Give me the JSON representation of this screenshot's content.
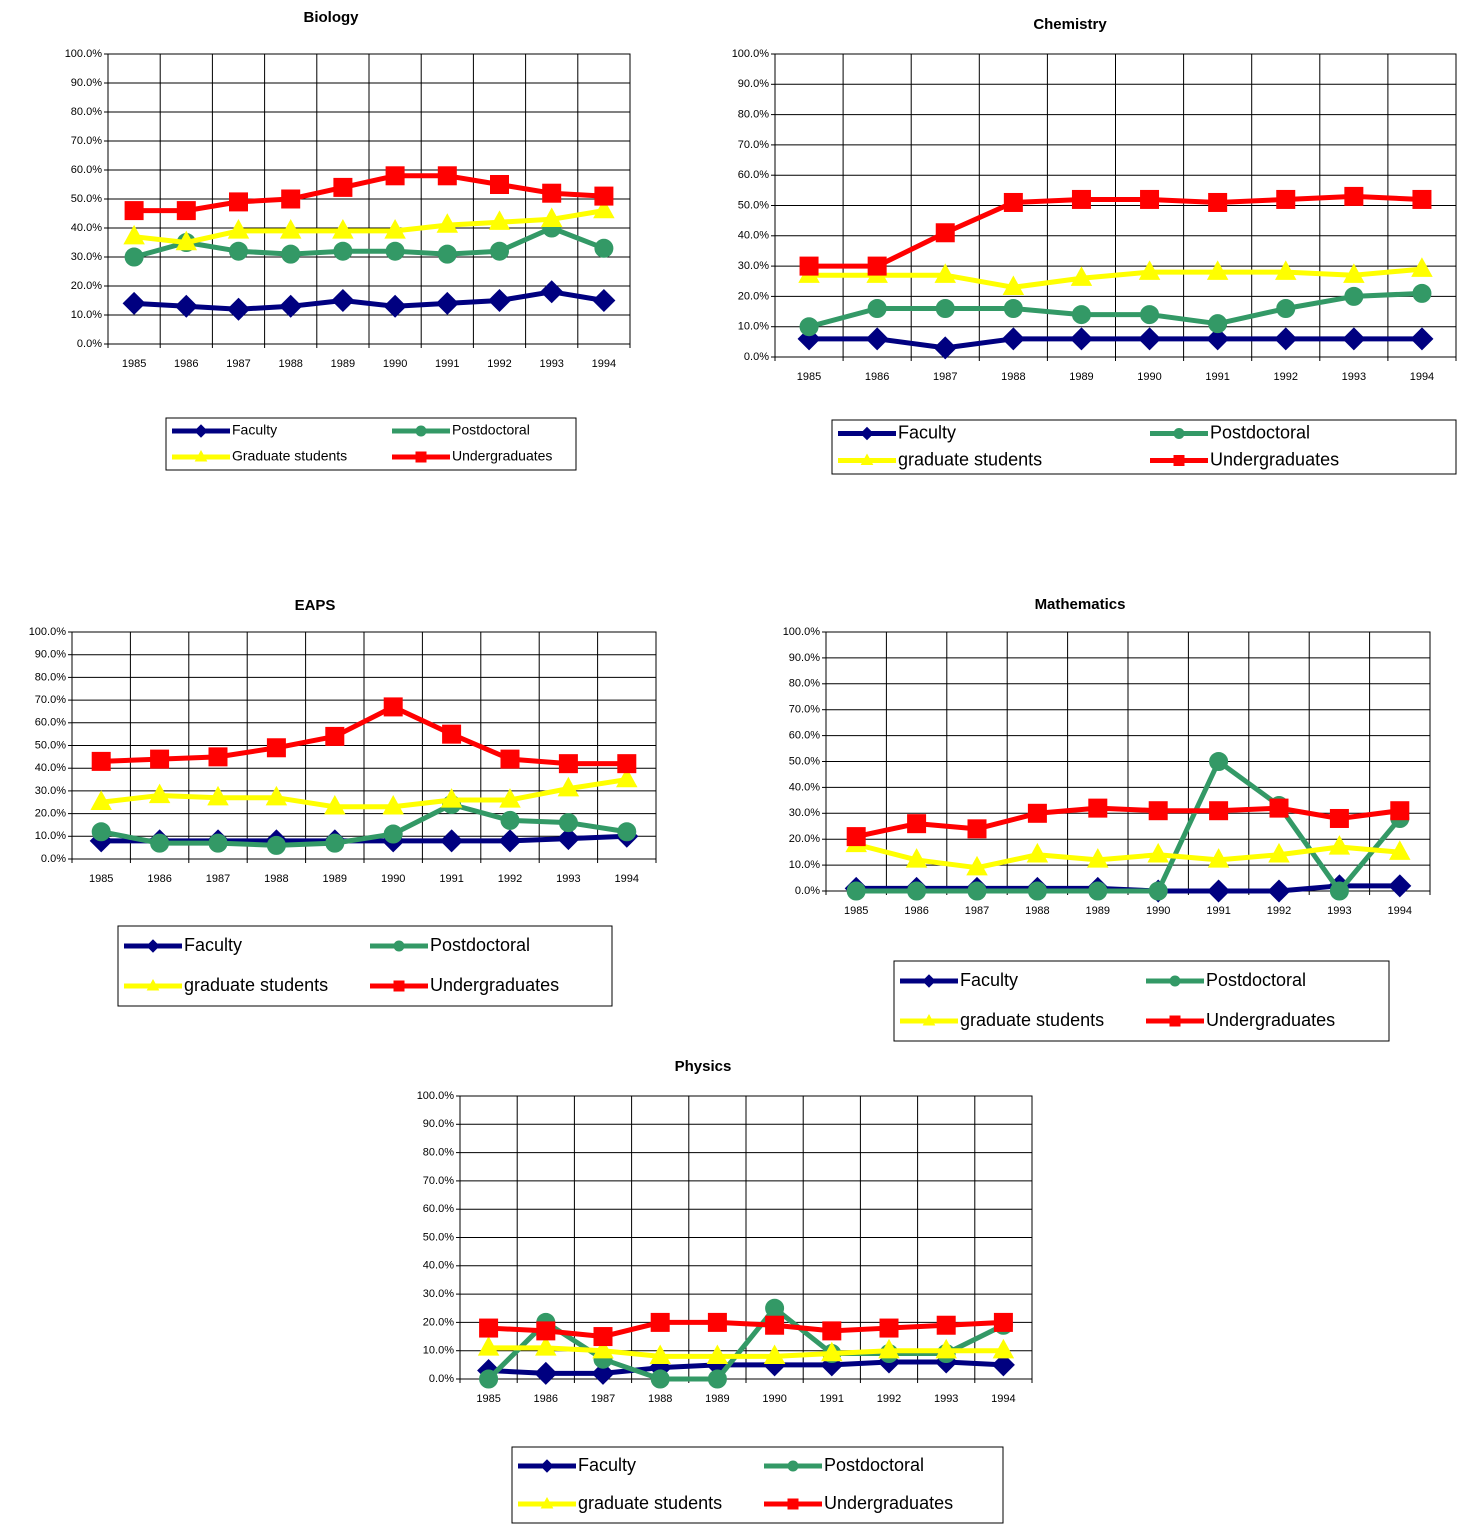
{
  "chart_data": [
    {
      "type": "line",
      "title": "Biology",
      "categories": [
        "1985",
        "1986",
        "1987",
        "1988",
        "1989",
        "1990",
        "1991",
        "1992",
        "1993",
        "1994"
      ],
      "series": [
        {
          "name": "Faculty",
          "color": "#000080",
          "values": [
            14,
            13,
            12,
            13,
            15,
            13,
            14,
            15,
            18,
            15
          ]
        },
        {
          "name": "Postdoctoral",
          "color": "#339966",
          "values": [
            30,
            35,
            32,
            31,
            32,
            32,
            31,
            32,
            40,
            33
          ]
        },
        {
          "name": "Graduate students",
          "color": "#FFFF00",
          "values": [
            37,
            35,
            39,
            39,
            39,
            39,
            41,
            42,
            43,
            46
          ]
        },
        {
          "name": "Undergraduates",
          "color": "#FF0000",
          "values": [
            46,
            46,
            49,
            50,
            54,
            58,
            58,
            55,
            52,
            51
          ]
        }
      ],
      "ylim": [
        0,
        100
      ],
      "yticks": [
        {
          "value": 0,
          "label": "0.0%"
        },
        {
          "value": 10,
          "label": "10.0%"
        },
        {
          "value": 20,
          "label": "20.0%"
        },
        {
          "value": 30,
          "label": "30.0%"
        },
        {
          "value": 40,
          "label": "40.0%"
        },
        {
          "value": 50,
          "label": "50.0%"
        },
        {
          "value": 60,
          "label": "60.0%"
        },
        {
          "value": 70,
          "label": "70.0%"
        },
        {
          "value": 80,
          "label": "80.0%"
        },
        {
          "value": 90,
          "label": "90.0%"
        },
        {
          "value": 100,
          "label": "100.0%"
        }
      ],
      "grid": true,
      "legend": "bottom"
    },
    {
      "type": "line",
      "title": "Chemistry",
      "categories": [
        "1985",
        "1986",
        "1987",
        "1988",
        "1989",
        "1990",
        "1991",
        "1992",
        "1993",
        "1994"
      ],
      "series": [
        {
          "name": "Faculty",
          "color": "#000080",
          "values": [
            6,
            6,
            3,
            6,
            6,
            6,
            6,
            6,
            6,
            6
          ]
        },
        {
          "name": "Postdoctoral",
          "color": "#339966",
          "values": [
            10,
            16,
            16,
            16,
            14,
            14,
            11,
            16,
            20,
            21
          ]
        },
        {
          "name": "graduate students",
          "color": "#FFFF00",
          "values": [
            27,
            27,
            27,
            23,
            26,
            28,
            28,
            28,
            27,
            29
          ]
        },
        {
          "name": "Undergraduates",
          "color": "#FF0000",
          "values": [
            30,
            30,
            41,
            51,
            52,
            52,
            51,
            52,
            53,
            52
          ]
        }
      ],
      "ylim": [
        0,
        100
      ],
      "yticks": [
        {
          "value": 0,
          "label": "0.0%"
        },
        {
          "value": 10,
          "label": "10.0%"
        },
        {
          "value": 20,
          "label": "20.0%"
        },
        {
          "value": 30,
          "label": "30.0%"
        },
        {
          "value": 40,
          "label": "40.0%"
        },
        {
          "value": 50,
          "label": "50.0%"
        },
        {
          "value": 60,
          "label": "60.0%"
        },
        {
          "value": 70,
          "label": "70.0%"
        },
        {
          "value": 80,
          "label": "80.0%"
        },
        {
          "value": 90,
          "label": "90.0%"
        },
        {
          "value": 100,
          "label": "100.0%"
        }
      ],
      "grid": true,
      "legend": "bottom"
    },
    {
      "type": "line",
      "title": "EAPS",
      "categories": [
        "1985",
        "1986",
        "1987",
        "1988",
        "1989",
        "1990",
        "1991",
        "1992",
        "1993",
        "1994"
      ],
      "series": [
        {
          "name": "Faculty",
          "color": "#000080",
          "values": [
            8,
            8,
            8,
            8,
            8,
            8,
            8,
            8,
            9,
            10
          ]
        },
        {
          "name": "Postdoctoral",
          "color": "#339966",
          "values": [
            12,
            7,
            7,
            6,
            7,
            11,
            24,
            17,
            16,
            12
          ]
        },
        {
          "name": "graduate students",
          "color": "#FFFF00",
          "values": [
            25,
            28,
            27,
            27,
            23,
            23,
            26,
            26,
            31,
            35
          ]
        },
        {
          "name": "Undergraduates",
          "color": "#FF0000",
          "values": [
            43,
            44,
            45,
            49,
            54,
            67,
            55,
            44,
            42,
            42
          ]
        }
      ],
      "ylim": [
        0,
        100
      ],
      "yticks": [
        {
          "value": 0,
          "label": "0.0%"
        },
        {
          "value": 10,
          "label": "10.0%"
        },
        {
          "value": 20,
          "label": "20.0%"
        },
        {
          "value": 30,
          "label": "30.0%"
        },
        {
          "value": 40,
          "label": "40.0%"
        },
        {
          "value": 50,
          "label": "50.0%"
        },
        {
          "value": 60,
          "label": "60.0%"
        },
        {
          "value": 70,
          "label": "70.0%"
        },
        {
          "value": 80,
          "label": "80.0%"
        },
        {
          "value": 90,
          "label": "90.0%"
        },
        {
          "value": 100,
          "label": "100.0%"
        }
      ],
      "grid": true,
      "legend": "bottom"
    },
    {
      "type": "line",
      "title": "Mathematics",
      "categories": [
        "1985",
        "1986",
        "1987",
        "1988",
        "1989",
        "1990",
        "1991",
        "1992",
        "1993",
        "1994"
      ],
      "series": [
        {
          "name": "Faculty",
          "color": "#000080",
          "values": [
            1,
            1,
            1,
            1,
            1,
            0,
            0,
            0,
            2,
            2
          ]
        },
        {
          "name": "Postdoctoral",
          "color": "#339966",
          "values": [
            0,
            0,
            0,
            0,
            0,
            0,
            50,
            33,
            0,
            28
          ]
        },
        {
          "name": "graduate students",
          "color": "#FFFF00",
          "values": [
            18,
            12,
            9,
            14,
            12,
            14,
            12,
            14,
            17,
            15
          ]
        },
        {
          "name": "Undergraduates",
          "color": "#FF0000",
          "values": [
            21,
            26,
            24,
            30,
            32,
            31,
            31,
            32,
            28,
            31
          ]
        }
      ],
      "ylim": [
        0,
        100
      ],
      "yticks": [
        {
          "value": 0,
          "label": "0.0%"
        },
        {
          "value": 10,
          "label": "10.0%"
        },
        {
          "value": 20,
          "label": "20.0%"
        },
        {
          "value": 30,
          "label": "30.0%"
        },
        {
          "value": 40,
          "label": "40.0%"
        },
        {
          "value": 50,
          "label": "50.0%"
        },
        {
          "value": 60,
          "label": "60.0%"
        },
        {
          "value": 70,
          "label": "70.0%"
        },
        {
          "value": 80,
          "label": "80.0%"
        },
        {
          "value": 90,
          "label": "90.0%"
        },
        {
          "value": 100,
          "label": "100.0%"
        }
      ],
      "grid": true,
      "legend": "bottom"
    },
    {
      "type": "line",
      "title": "Physics",
      "categories": [
        "1985",
        "1986",
        "1987",
        "1988",
        "1989",
        "1990",
        "1991",
        "1992",
        "1993",
        "1994"
      ],
      "series": [
        {
          "name": "Faculty",
          "color": "#000080",
          "values": [
            3,
            2,
            2,
            4,
            5,
            5,
            5,
            6,
            6,
            5
          ]
        },
        {
          "name": "Postdoctoral",
          "color": "#339966",
          "values": [
            0,
            20,
            7,
            0,
            0,
            25,
            9,
            9,
            9,
            19
          ]
        },
        {
          "name": "graduate students",
          "color": "#FFFF00",
          "values": [
            11,
            11,
            10,
            8,
            8,
            8,
            9,
            10,
            10,
            10
          ]
        },
        {
          "name": "Undergraduates",
          "color": "#FF0000",
          "values": [
            18,
            17,
            15,
            20,
            20,
            19,
            17,
            18,
            19,
            20
          ]
        }
      ],
      "ylim": [
        0,
        100
      ],
      "yticks": [
        {
          "value": 0,
          "label": "0.0%"
        },
        {
          "value": 10,
          "label": "10.0%"
        },
        {
          "value": 20,
          "label": "20.0%"
        },
        {
          "value": 30,
          "label": "30.0%"
        },
        {
          "value": 40,
          "label": "40.0%"
        },
        {
          "value": 50,
          "label": "50.0%"
        },
        {
          "value": 60,
          "label": "60.0%"
        },
        {
          "value": 70,
          "label": "70.0%"
        },
        {
          "value": 80,
          "label": "80.0%"
        },
        {
          "value": 90,
          "label": "90.0%"
        },
        {
          "value": 100,
          "label": "100.0%"
        }
      ],
      "grid": true,
      "legend": "bottom"
    }
  ]
}
